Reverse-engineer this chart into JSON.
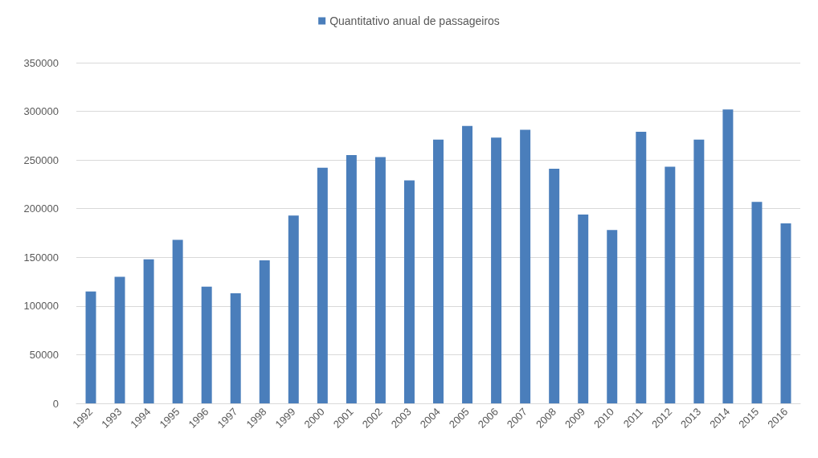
{
  "chart_data": {
    "type": "bar",
    "categories": [
      "1992",
      "1993",
      "1994",
      "1995",
      "1996",
      "1997",
      "1998",
      "1999",
      "2000",
      "2001",
      "2002",
      "2003",
      "2004",
      "2005",
      "2006",
      "2007",
      "2008",
      "2009",
      "2010",
      "2011",
      "2012",
      "2013",
      "2014",
      "2015",
      "2016"
    ],
    "series": [
      {
        "name": "Quantitativo anual de passageiros",
        "color": "#4a7ebb",
        "values": [
          115000,
          130000,
          148000,
          168000,
          120000,
          113000,
          147000,
          193000,
          242000,
          255000,
          253000,
          229000,
          271000,
          285000,
          273000,
          281000,
          241000,
          194000,
          178000,
          279000,
          243000,
          271000,
          302000,
          207000,
          185000
        ]
      }
    ],
    "ylim": [
      0,
      350000
    ],
    "yticks": [
      0,
      50000,
      100000,
      150000,
      200000,
      250000,
      300000,
      350000
    ],
    "grid": "y",
    "legend": "top"
  }
}
